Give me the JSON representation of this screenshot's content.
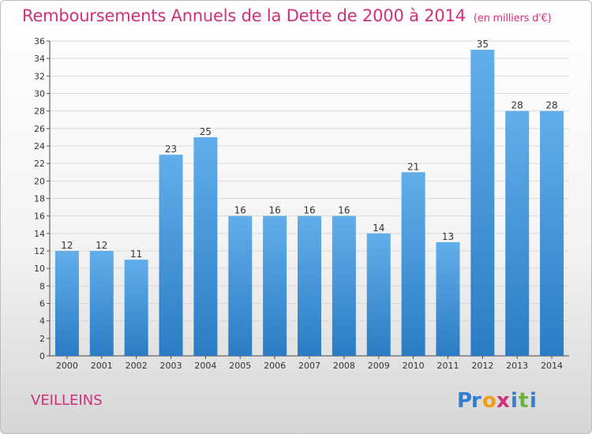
{
  "title": "Remboursements Annuels de la Dette de 2000 à 2014",
  "title_unit": "(en milliers d'€)",
  "commune": "VEILLEINS",
  "logo": {
    "text": "Proxiti",
    "letters": [
      "P",
      "r",
      "o",
      "x",
      "i",
      "t",
      "i"
    ],
    "colors": [
      "#2e7fd1",
      "#2e7fd1",
      "#f39c12",
      "#d0307a",
      "#2e7fd1",
      "#6ab23e",
      "#2e7fd1"
    ]
  },
  "colors": {
    "bar": "#5aa5e6",
    "bar_dark": "#2c7ec7",
    "title": "#d0307a"
  },
  "chart_data": {
    "type": "bar",
    "categories": [
      "2000",
      "2001",
      "2002",
      "2003",
      "2004",
      "2005",
      "2006",
      "2007",
      "2008",
      "2009",
      "2010",
      "2011",
      "2012",
      "2013",
      "2014"
    ],
    "values": [
      12,
      12,
      11,
      23,
      25,
      16,
      16,
      16,
      16,
      14,
      21,
      13,
      35,
      28,
      28
    ],
    "ylim": [
      0,
      36
    ],
    "yticks": [
      0,
      2,
      4,
      6,
      8,
      10,
      12,
      14,
      16,
      18,
      20,
      22,
      24,
      26,
      28,
      30,
      32,
      34,
      36
    ],
    "grid": true
  }
}
